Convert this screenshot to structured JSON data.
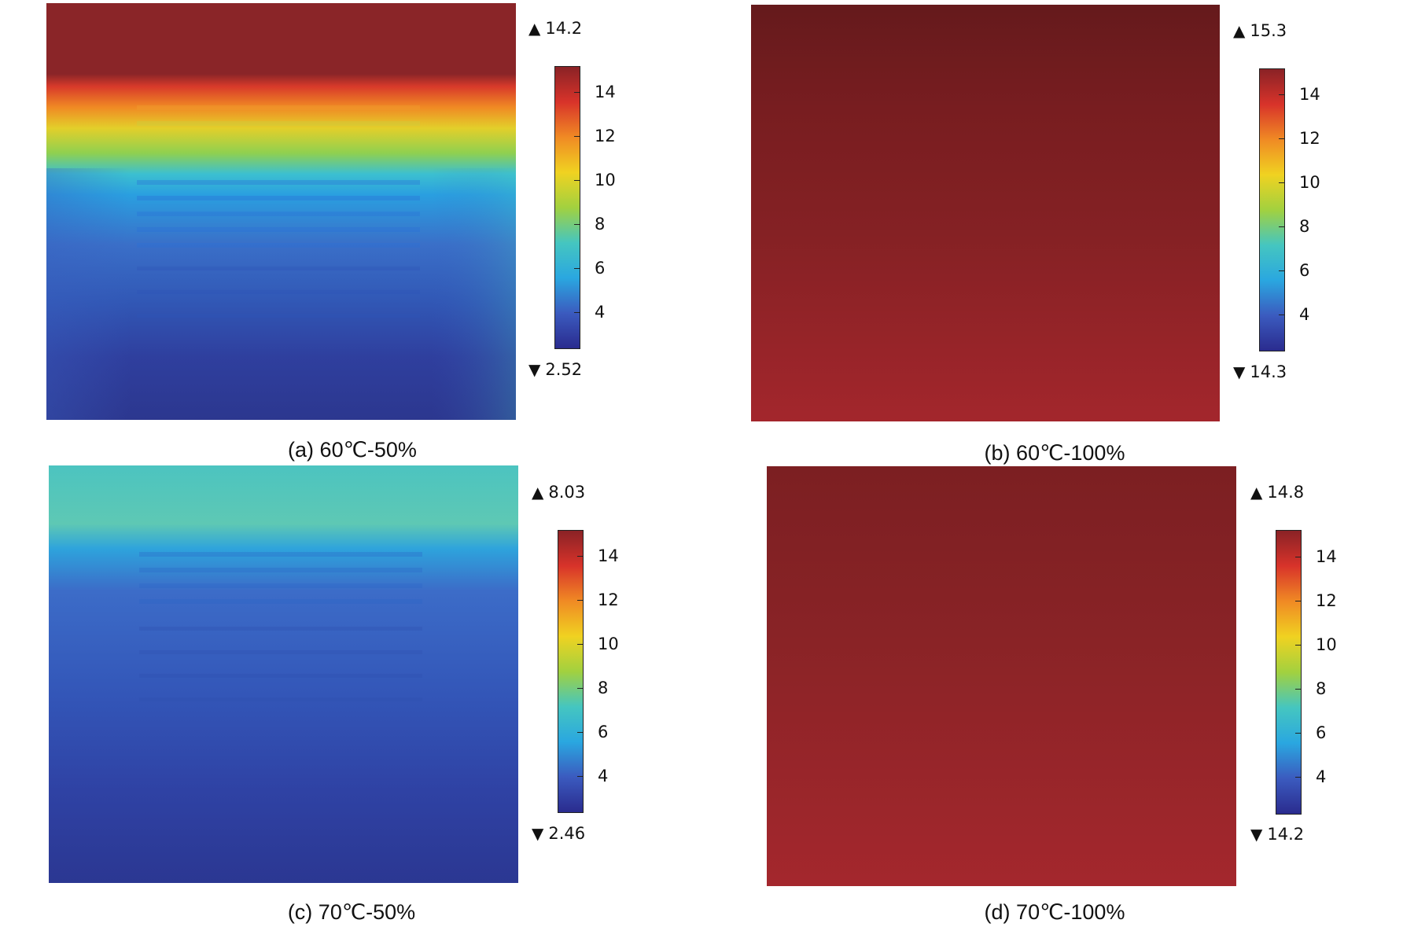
{
  "colormap": {
    "stops": [
      "#2a2b8e",
      "#3b5bbf",
      "#2aa7e0",
      "#45c6c0",
      "#a2d13f",
      "#f0d221",
      "#f08a24",
      "#d8332a",
      "#8a2226"
    ],
    "range": [
      2.3,
      15.2
    ],
    "ticks": [
      "14",
      "12",
      "10",
      "8",
      "6",
      "4"
    ],
    "tick_values": [
      14,
      12,
      10,
      8,
      6,
      4
    ]
  },
  "panels": [
    {
      "id": "a",
      "caption": "(a) 60℃-50%",
      "max_label": "14.2",
      "min_label": "2.52",
      "field": "stratified-hot-top"
    },
    {
      "id": "b",
      "caption": "(b) 60℃-100%",
      "max_label": "15.3",
      "min_label": "14.3",
      "field": "uniform-hot"
    },
    {
      "id": "c",
      "caption": "(c) 70℃-50%",
      "max_label": "8.03",
      "min_label": "2.46",
      "field": "stratified-warm-top"
    },
    {
      "id": "d",
      "caption": "(d) 70℃-100%",
      "max_label": "14.8",
      "min_label": "14.2",
      "field": "uniform-hot"
    }
  ],
  "symbols": {
    "max_arrow": "▲",
    "min_arrow": "▼"
  }
}
